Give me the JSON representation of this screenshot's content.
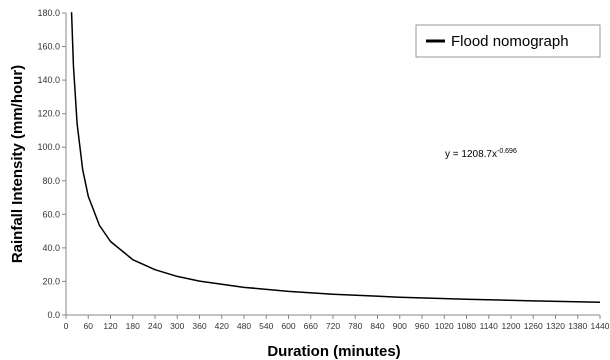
{
  "chart_data": {
    "type": "line",
    "title": "",
    "xlabel": "Duration (minutes)",
    "ylabel": "Rainfall Intensity (mm/hour)",
    "xlim": [
      0,
      1440
    ],
    "ylim": [
      0,
      180
    ],
    "x_ticks": [
      0,
      60,
      120,
      180,
      240,
      300,
      360,
      420,
      480,
      540,
      600,
      660,
      720,
      780,
      840,
      900,
      960,
      1020,
      1080,
      1140,
      1200,
      1260,
      1320,
      1380,
      1440
    ],
    "y_ticks": [
      "0.0",
      "20.0",
      "40.0",
      "60.0",
      "80.0",
      "100.0",
      "120.0",
      "140.0",
      "160.0",
      "180.0"
    ],
    "grid": false,
    "legend_position": "top-right",
    "series": [
      {
        "name": "Flood nomograph",
        "color": "#000000",
        "x": [
          15,
          20,
          30,
          45,
          60,
          90,
          120,
          180,
          240,
          300,
          360,
          480,
          600,
          720,
          900,
          1080,
          1260,
          1440
        ],
        "y": [
          180.5,
          148.7,
          113.9,
          86.6,
          70.8,
          53.5,
          43.8,
          33.0,
          27.0,
          23.0,
          20.2,
          16.5,
          14.1,
          12.4,
          10.6,
          9.4,
          8.4,
          7.6
        ]
      }
    ],
    "annotation": {
      "prefix": "y = 1208.7x",
      "exponent": "-0.696"
    }
  }
}
